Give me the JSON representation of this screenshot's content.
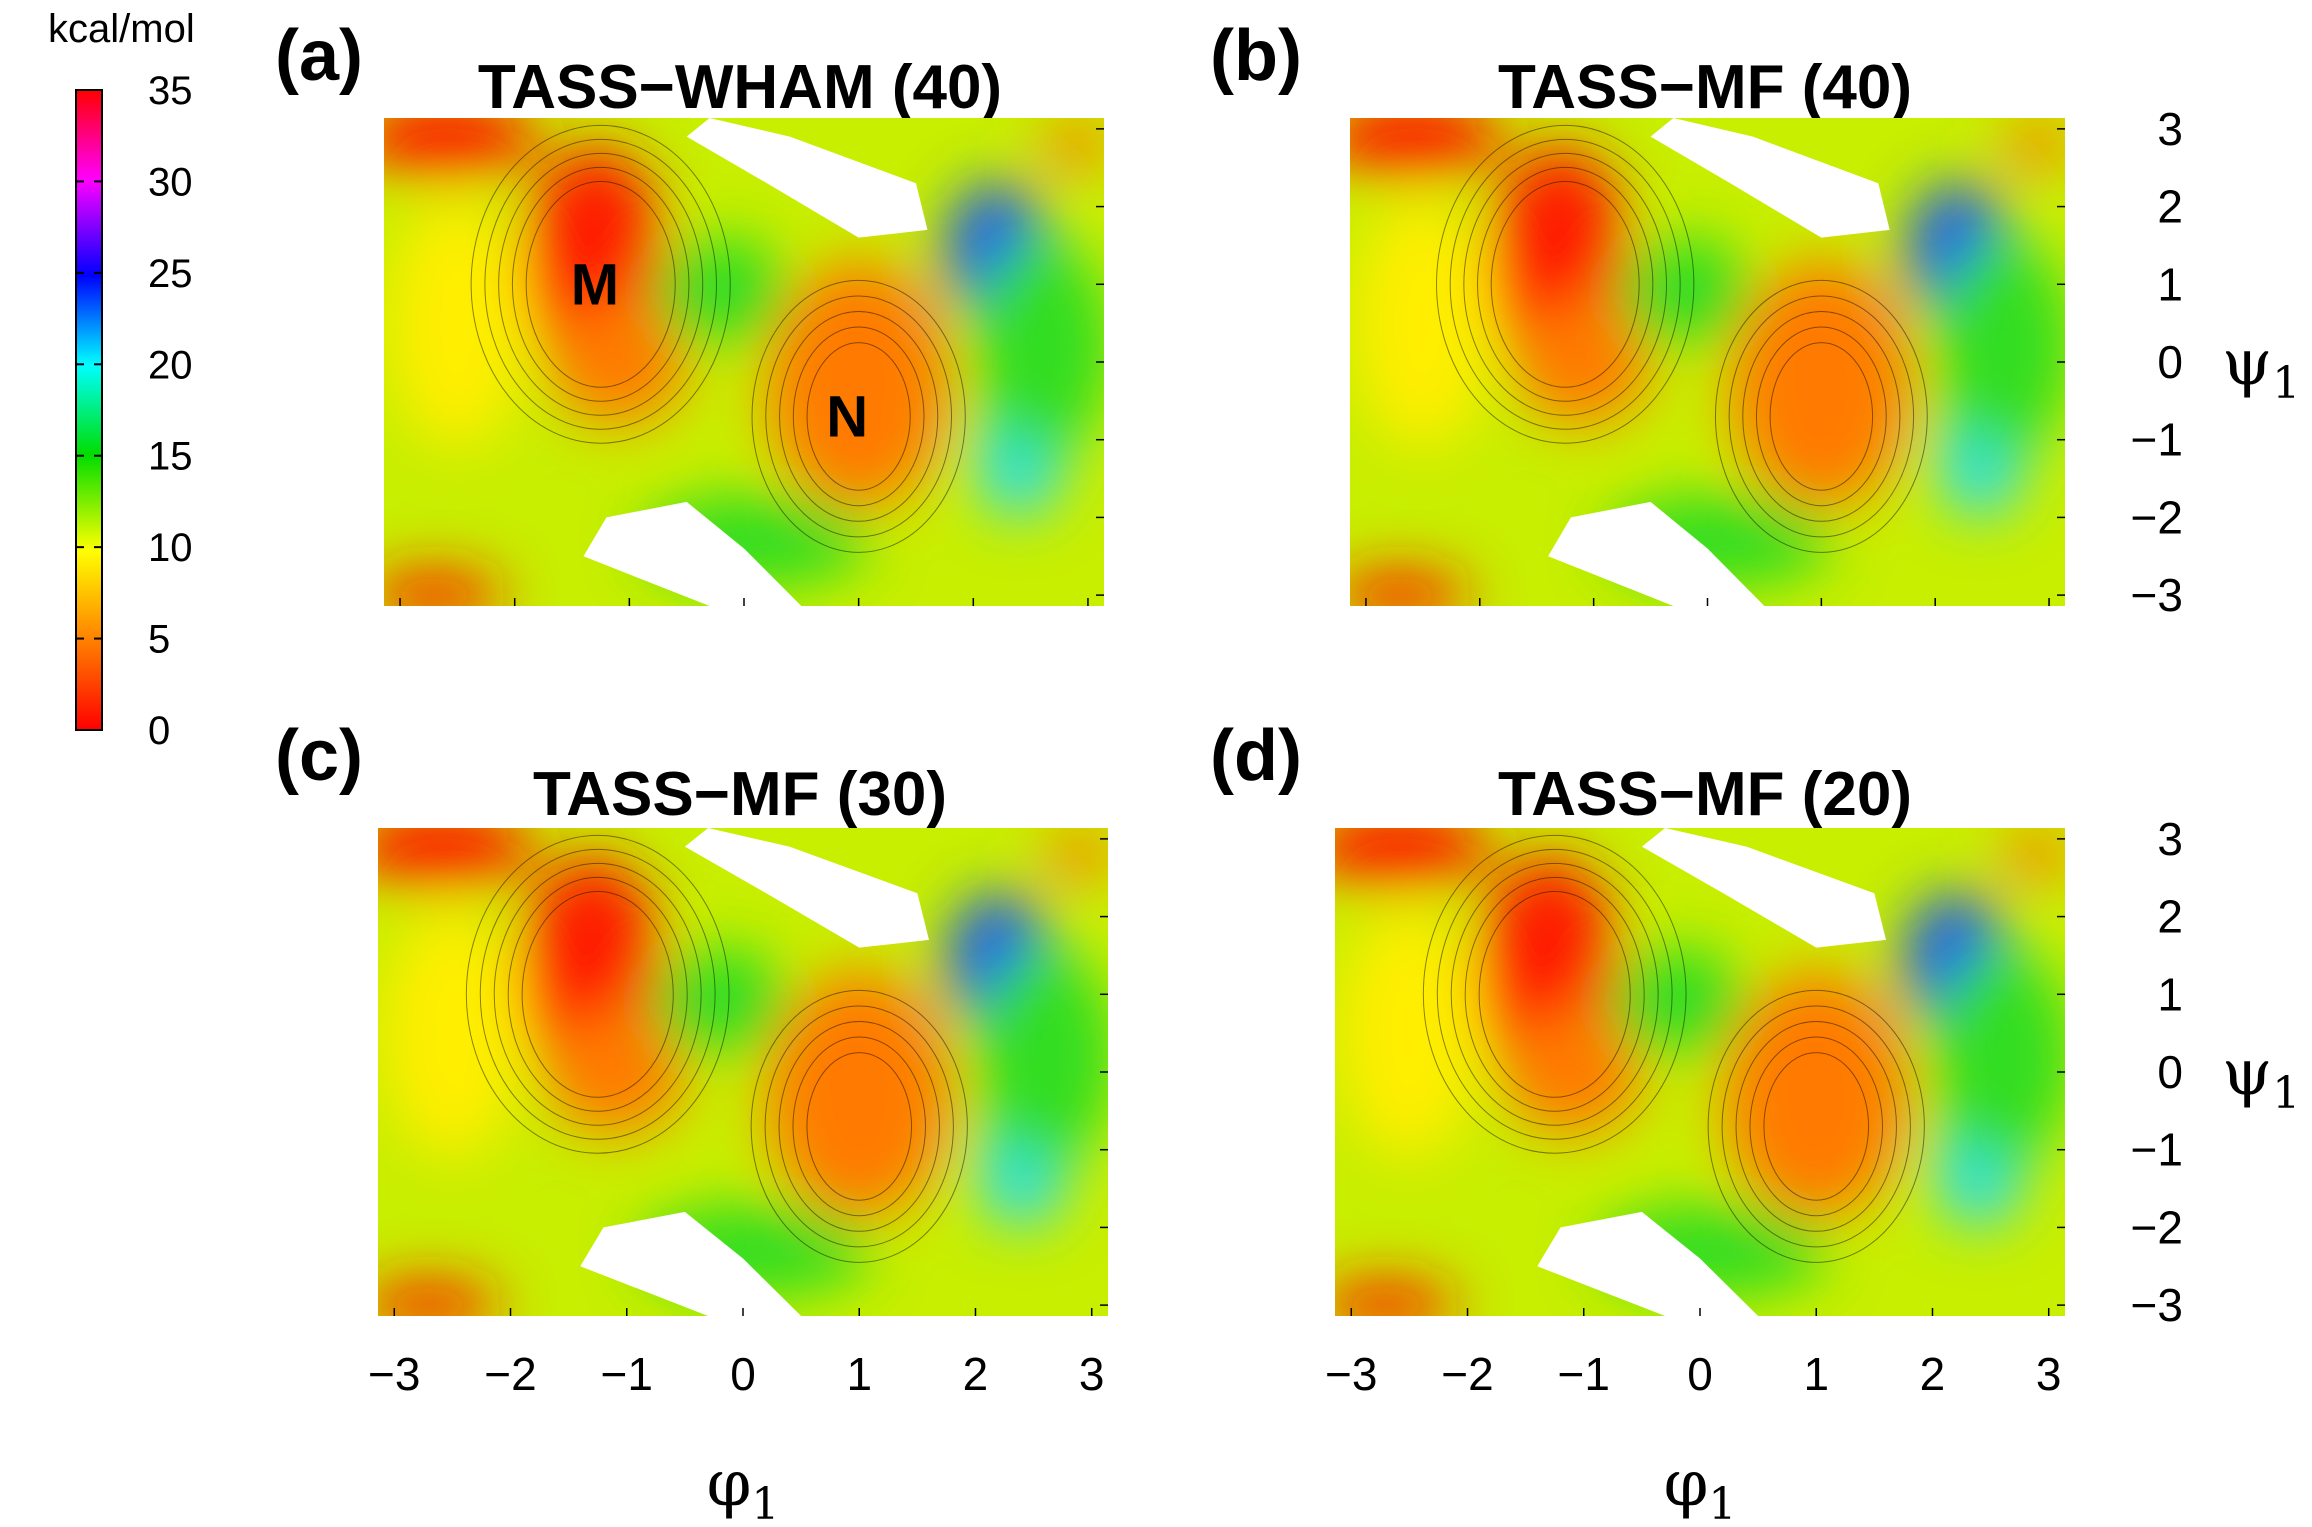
{
  "colorbar": {
    "unit": "kcal/mol",
    "ticks": [
      "35",
      "30",
      "25",
      "20",
      "15",
      "10",
      "5",
      "0"
    ],
    "range": [
      0,
      35
    ],
    "colors": [
      "#ff0000",
      "#ff8000",
      "#ffff00",
      "#00dd00",
      "#00ffff",
      "#0000ff",
      "#ff00ff",
      "#ff0000"
    ]
  },
  "x_ticks": [
    "−3",
    "−2",
    "−1",
    "0",
    "1",
    "2",
    "3"
  ],
  "y_ticks": [
    "3",
    "2",
    "1",
    "0",
    "−1",
    "−2",
    "−3"
  ],
  "x_label": "φ",
  "x_label_sub": "1",
  "y_label": "ψ",
  "y_label_sub": "1",
  "panels": [
    {
      "letter": "(a)",
      "title": "TASS−WHAM (40)",
      "annotations": [
        {
          "text": "M",
          "phi": -1.3,
          "psi": 1.0
        },
        {
          "text": "N",
          "phi": 0.9,
          "psi": -0.7
        }
      ]
    },
    {
      "letter": "(b)",
      "title": "TASS−MF (40)",
      "annotations": []
    },
    {
      "letter": "(c)",
      "title": "TASS−MF (30)",
      "annotations": []
    },
    {
      "letter": "(d)",
      "title": "TASS−MF (20)",
      "annotations": []
    }
  ],
  "chart_data": {
    "type": "heatmap",
    "xlabel": "φ1",
    "ylabel": "ψ1",
    "xlim": [
      -3.14,
      3.14
    ],
    "ylim": [
      -3.14,
      3.14
    ],
    "colorbar_label": "kcal/mol",
    "zlim": [
      0,
      35
    ],
    "panels": [
      "TASS−WHAM (40)",
      "TASS−MF (40)",
      "TASS−MF (30)",
      "TASS−MF (20)"
    ],
    "minima": [
      {
        "label": "M",
        "phi": -1.3,
        "psi": 1.0,
        "energy": 0
      },
      {
        "label": "N",
        "phi": 1.0,
        "psi": -0.7,
        "energy": 0
      }
    ]
  }
}
